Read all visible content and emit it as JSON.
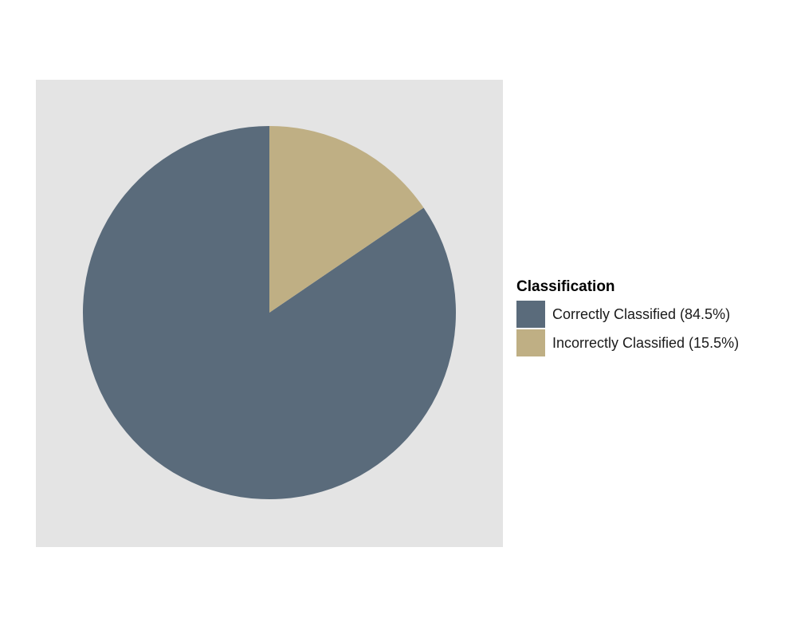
{
  "chart_data": {
    "type": "pie",
    "title": "",
    "legend_title": "Classification",
    "legend_position": "right",
    "start_angle": "12 o'clock",
    "direction": "counterclockwise",
    "slices": [
      {
        "label": "Correctly Classified (84.5%)",
        "value": 84.5,
        "color": "#5a6b7b"
      },
      {
        "label": "Incorrectly Classified (15.5%)",
        "value": 15.5,
        "color": "#bfaf84"
      }
    ],
    "panel_background": "#e4e4e4",
    "grid": false
  }
}
